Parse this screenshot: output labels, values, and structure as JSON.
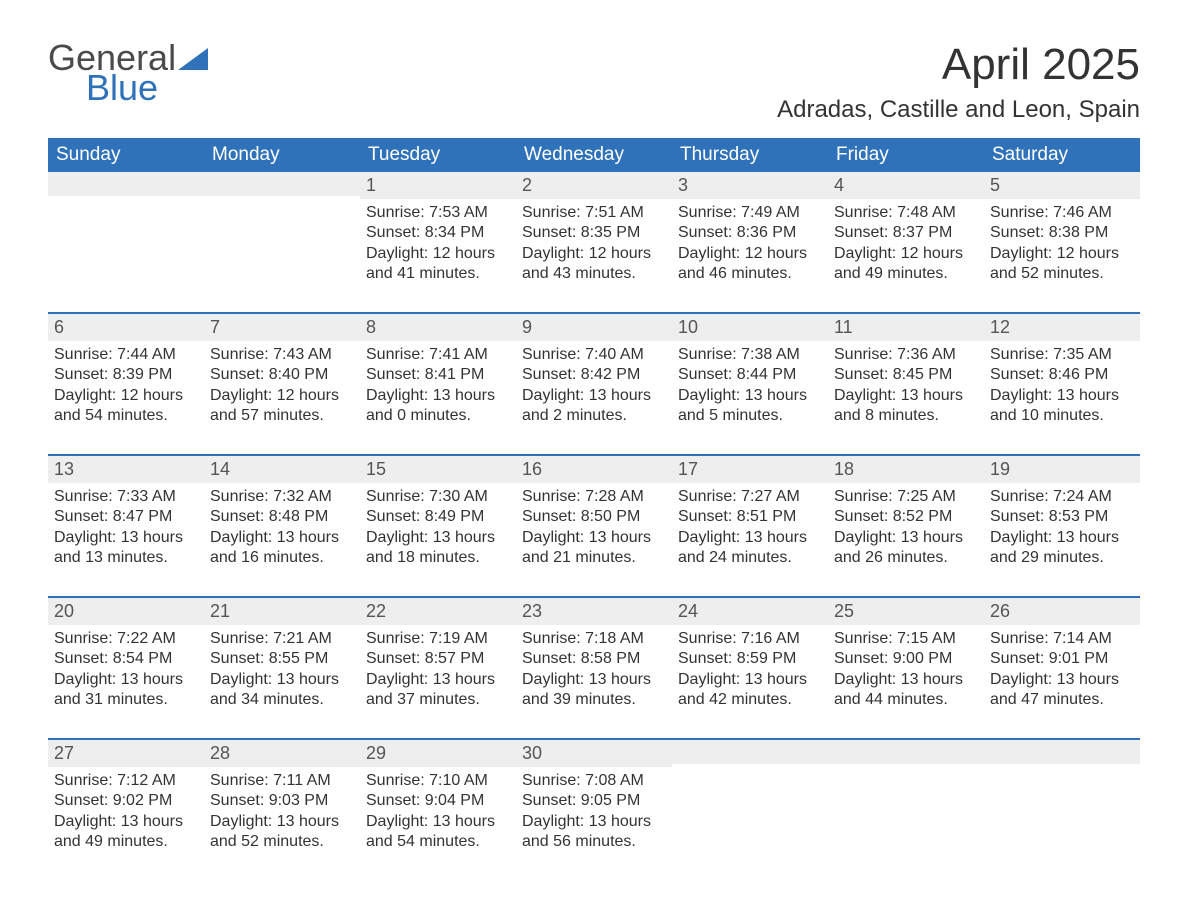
{
  "brand": {
    "word1": "General",
    "word2": "Blue",
    "word1_color": "#4a4a4a",
    "word2_color": "#2f72b9",
    "triangle_color": "#2f72b9"
  },
  "title": "April 2025",
  "location": "Adradas, Castille and Leon, Spain",
  "colors": {
    "header_bg": "#2f72b9",
    "header_text": "#ffffff",
    "daynum_bg": "#eeeeee",
    "daynum_text": "#555555",
    "body_text": "#333333",
    "week_border": "#2f72b9",
    "page_bg": "#ffffff"
  },
  "typography": {
    "title_fontsize": 44,
    "location_fontsize": 24,
    "dow_fontsize": 19,
    "daynum_fontsize": 18,
    "body_fontsize": 16
  },
  "days_of_week": [
    "Sunday",
    "Monday",
    "Tuesday",
    "Wednesday",
    "Thursday",
    "Friday",
    "Saturday"
  ],
  "weeks": [
    [
      {
        "n": "",
        "sunrise": "",
        "sunset": "",
        "daylight": ""
      },
      {
        "n": "",
        "sunrise": "",
        "sunset": "",
        "daylight": ""
      },
      {
        "n": "1",
        "sunrise": "Sunrise: 7:53 AM",
        "sunset": "Sunset: 8:34 PM",
        "daylight": "Daylight: 12 hours and 41 minutes."
      },
      {
        "n": "2",
        "sunrise": "Sunrise: 7:51 AM",
        "sunset": "Sunset: 8:35 PM",
        "daylight": "Daylight: 12 hours and 43 minutes."
      },
      {
        "n": "3",
        "sunrise": "Sunrise: 7:49 AM",
        "sunset": "Sunset: 8:36 PM",
        "daylight": "Daylight: 12 hours and 46 minutes."
      },
      {
        "n": "4",
        "sunrise": "Sunrise: 7:48 AM",
        "sunset": "Sunset: 8:37 PM",
        "daylight": "Daylight: 12 hours and 49 minutes."
      },
      {
        "n": "5",
        "sunrise": "Sunrise: 7:46 AM",
        "sunset": "Sunset: 8:38 PM",
        "daylight": "Daylight: 12 hours and 52 minutes."
      }
    ],
    [
      {
        "n": "6",
        "sunrise": "Sunrise: 7:44 AM",
        "sunset": "Sunset: 8:39 PM",
        "daylight": "Daylight: 12 hours and 54 minutes."
      },
      {
        "n": "7",
        "sunrise": "Sunrise: 7:43 AM",
        "sunset": "Sunset: 8:40 PM",
        "daylight": "Daylight: 12 hours and 57 minutes."
      },
      {
        "n": "8",
        "sunrise": "Sunrise: 7:41 AM",
        "sunset": "Sunset: 8:41 PM",
        "daylight": "Daylight: 13 hours and 0 minutes."
      },
      {
        "n": "9",
        "sunrise": "Sunrise: 7:40 AM",
        "sunset": "Sunset: 8:42 PM",
        "daylight": "Daylight: 13 hours and 2 minutes."
      },
      {
        "n": "10",
        "sunrise": "Sunrise: 7:38 AM",
        "sunset": "Sunset: 8:44 PM",
        "daylight": "Daylight: 13 hours and 5 minutes."
      },
      {
        "n": "11",
        "sunrise": "Sunrise: 7:36 AM",
        "sunset": "Sunset: 8:45 PM",
        "daylight": "Daylight: 13 hours and 8 minutes."
      },
      {
        "n": "12",
        "sunrise": "Sunrise: 7:35 AM",
        "sunset": "Sunset: 8:46 PM",
        "daylight": "Daylight: 13 hours and 10 minutes."
      }
    ],
    [
      {
        "n": "13",
        "sunrise": "Sunrise: 7:33 AM",
        "sunset": "Sunset: 8:47 PM",
        "daylight": "Daylight: 13 hours and 13 minutes."
      },
      {
        "n": "14",
        "sunrise": "Sunrise: 7:32 AM",
        "sunset": "Sunset: 8:48 PM",
        "daylight": "Daylight: 13 hours and 16 minutes."
      },
      {
        "n": "15",
        "sunrise": "Sunrise: 7:30 AM",
        "sunset": "Sunset: 8:49 PM",
        "daylight": "Daylight: 13 hours and 18 minutes."
      },
      {
        "n": "16",
        "sunrise": "Sunrise: 7:28 AM",
        "sunset": "Sunset: 8:50 PM",
        "daylight": "Daylight: 13 hours and 21 minutes."
      },
      {
        "n": "17",
        "sunrise": "Sunrise: 7:27 AM",
        "sunset": "Sunset: 8:51 PM",
        "daylight": "Daylight: 13 hours and 24 minutes."
      },
      {
        "n": "18",
        "sunrise": "Sunrise: 7:25 AM",
        "sunset": "Sunset: 8:52 PM",
        "daylight": "Daylight: 13 hours and 26 minutes."
      },
      {
        "n": "19",
        "sunrise": "Sunrise: 7:24 AM",
        "sunset": "Sunset: 8:53 PM",
        "daylight": "Daylight: 13 hours and 29 minutes."
      }
    ],
    [
      {
        "n": "20",
        "sunrise": "Sunrise: 7:22 AM",
        "sunset": "Sunset: 8:54 PM",
        "daylight": "Daylight: 13 hours and 31 minutes."
      },
      {
        "n": "21",
        "sunrise": "Sunrise: 7:21 AM",
        "sunset": "Sunset: 8:55 PM",
        "daylight": "Daylight: 13 hours and 34 minutes."
      },
      {
        "n": "22",
        "sunrise": "Sunrise: 7:19 AM",
        "sunset": "Sunset: 8:57 PM",
        "daylight": "Daylight: 13 hours and 37 minutes."
      },
      {
        "n": "23",
        "sunrise": "Sunrise: 7:18 AM",
        "sunset": "Sunset: 8:58 PM",
        "daylight": "Daylight: 13 hours and 39 minutes."
      },
      {
        "n": "24",
        "sunrise": "Sunrise: 7:16 AM",
        "sunset": "Sunset: 8:59 PM",
        "daylight": "Daylight: 13 hours and 42 minutes."
      },
      {
        "n": "25",
        "sunrise": "Sunrise: 7:15 AM",
        "sunset": "Sunset: 9:00 PM",
        "daylight": "Daylight: 13 hours and 44 minutes."
      },
      {
        "n": "26",
        "sunrise": "Sunrise: 7:14 AM",
        "sunset": "Sunset: 9:01 PM",
        "daylight": "Daylight: 13 hours and 47 minutes."
      }
    ],
    [
      {
        "n": "27",
        "sunrise": "Sunrise: 7:12 AM",
        "sunset": "Sunset: 9:02 PM",
        "daylight": "Daylight: 13 hours and 49 minutes."
      },
      {
        "n": "28",
        "sunrise": "Sunrise: 7:11 AM",
        "sunset": "Sunset: 9:03 PM",
        "daylight": "Daylight: 13 hours and 52 minutes."
      },
      {
        "n": "29",
        "sunrise": "Sunrise: 7:10 AM",
        "sunset": "Sunset: 9:04 PM",
        "daylight": "Daylight: 13 hours and 54 minutes."
      },
      {
        "n": "30",
        "sunrise": "Sunrise: 7:08 AM",
        "sunset": "Sunset: 9:05 PM",
        "daylight": "Daylight: 13 hours and 56 minutes."
      },
      {
        "n": "",
        "sunrise": "",
        "sunset": "",
        "daylight": ""
      },
      {
        "n": "",
        "sunrise": "",
        "sunset": "",
        "daylight": ""
      },
      {
        "n": "",
        "sunrise": "",
        "sunset": "",
        "daylight": ""
      }
    ]
  ]
}
